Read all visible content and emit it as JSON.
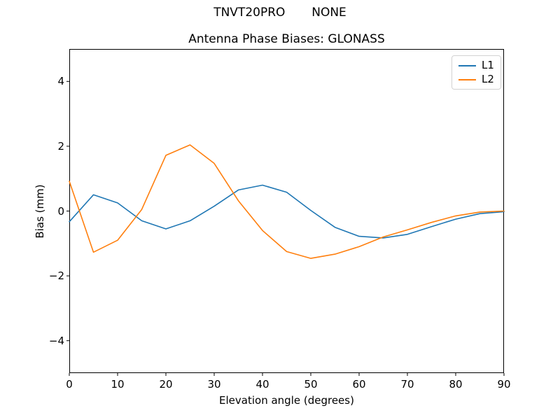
{
  "figure": {
    "suptitle": "TNVT20PRO       NONE",
    "background": "#ffffff"
  },
  "chart_data": {
    "type": "line",
    "title": "Antenna Phase Biases: GLONASS",
    "xlabel": "Elevation angle (degrees)",
    "ylabel": "Bias (mm)",
    "xlim": [
      0,
      90
    ],
    "ylim": [
      -5,
      5
    ],
    "xticks": [
      0,
      10,
      20,
      30,
      40,
      50,
      60,
      70,
      80,
      90
    ],
    "yticks": [
      -4,
      -2,
      0,
      2,
      4
    ],
    "grid": false,
    "legend_position": "upper-right",
    "axis_color": "#000000",
    "x": [
      0,
      5,
      10,
      15,
      20,
      25,
      30,
      35,
      40,
      45,
      50,
      55,
      60,
      65,
      70,
      75,
      80,
      85,
      90
    ],
    "series": [
      {
        "name": "L1",
        "color": "#1f77b4",
        "values": [
          -0.33,
          0.5,
          0.25,
          -0.3,
          -0.55,
          -0.3,
          0.15,
          0.65,
          0.8,
          0.58,
          0.02,
          -0.5,
          -0.78,
          -0.83,
          -0.72,
          -0.48,
          -0.25,
          -0.08,
          -0.02
        ]
      },
      {
        "name": "L2",
        "color": "#ff7f0e",
        "values": [
          0.92,
          -1.27,
          -0.9,
          0.05,
          1.72,
          2.04,
          1.47,
          0.32,
          -0.6,
          -1.25,
          -1.46,
          -1.33,
          -1.1,
          -0.8,
          -0.58,
          -0.35,
          -0.15,
          -0.03,
          0.0
        ]
      }
    ]
  }
}
